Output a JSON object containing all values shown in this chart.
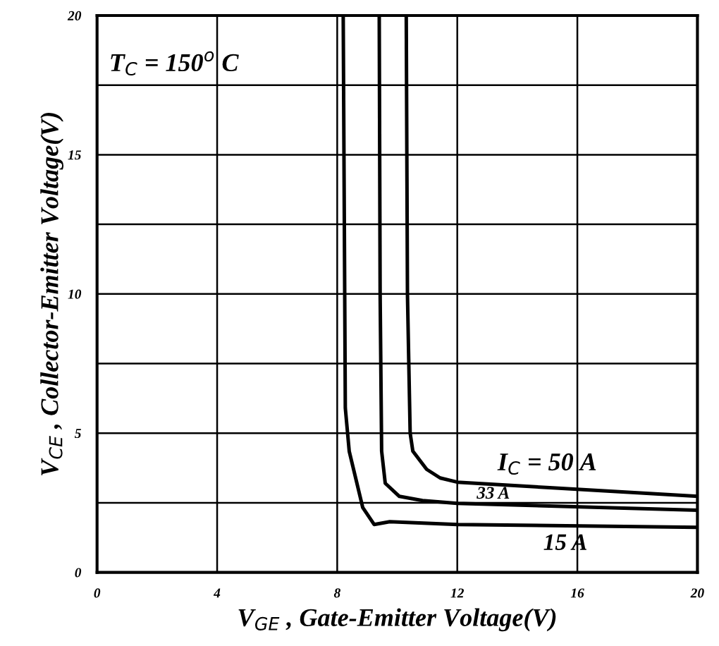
{
  "chart_data": {
    "type": "line",
    "xlabel": "V$_{GE}$ , Gate-Emitter Voltage(V)",
    "ylabel": "V$_{CE}$ , Collector-Emitter Voltage(V)",
    "annotations": [
      "T$_{C}$ = 150$^{o}$ C"
    ],
    "xlim": [
      0,
      20
    ],
    "xticks": [
      0,
      4,
      8,
      12,
      16,
      20
    ],
    "ylim": [
      0,
      20
    ],
    "yticks": [
      0,
      {
        "value": 2.5,
        "label": null
      },
      5,
      {
        "value": 7.5,
        "label": null
      },
      10,
      {
        "value": 12.5,
        "label": null
      },
      15,
      {
        "value": 17.5,
        "label": null
      },
      20
    ],
    "grid": true,
    "legend": false,
    "marker": "none",
    "line_style": "solid",
    "series": [
      {
        "name": "I$_{C}$ = 50 A",
        "color": "#000000",
        "x": [
          10.3,
          10.34,
          10.43,
          10.52,
          10.98,
          11.43,
          12,
          15.08,
          20
        ],
        "values": [
          20,
          10,
          5.0,
          4.35,
          3.7,
          3.39,
          3.24,
          3.04,
          2.73
        ]
      },
      {
        "name": "33 A",
        "color": "#000000",
        "x": [
          9.4,
          9.43,
          9.48,
          9.6,
          10.07,
          10.84,
          12,
          20
        ],
        "values": [
          20,
          10,
          4.35,
          3.2,
          2.73,
          2.58,
          2.48,
          2.23
        ]
      },
      {
        "name": "15 A",
        "color": "#000000",
        "x": [
          8.2,
          8.25,
          8.27,
          8.4,
          8.85,
          9.23,
          9.75,
          12,
          20
        ],
        "values": [
          20,
          10,
          5.9,
          4.35,
          2.33,
          1.72,
          1.82,
          1.72,
          1.62
        ]
      }
    ]
  }
}
